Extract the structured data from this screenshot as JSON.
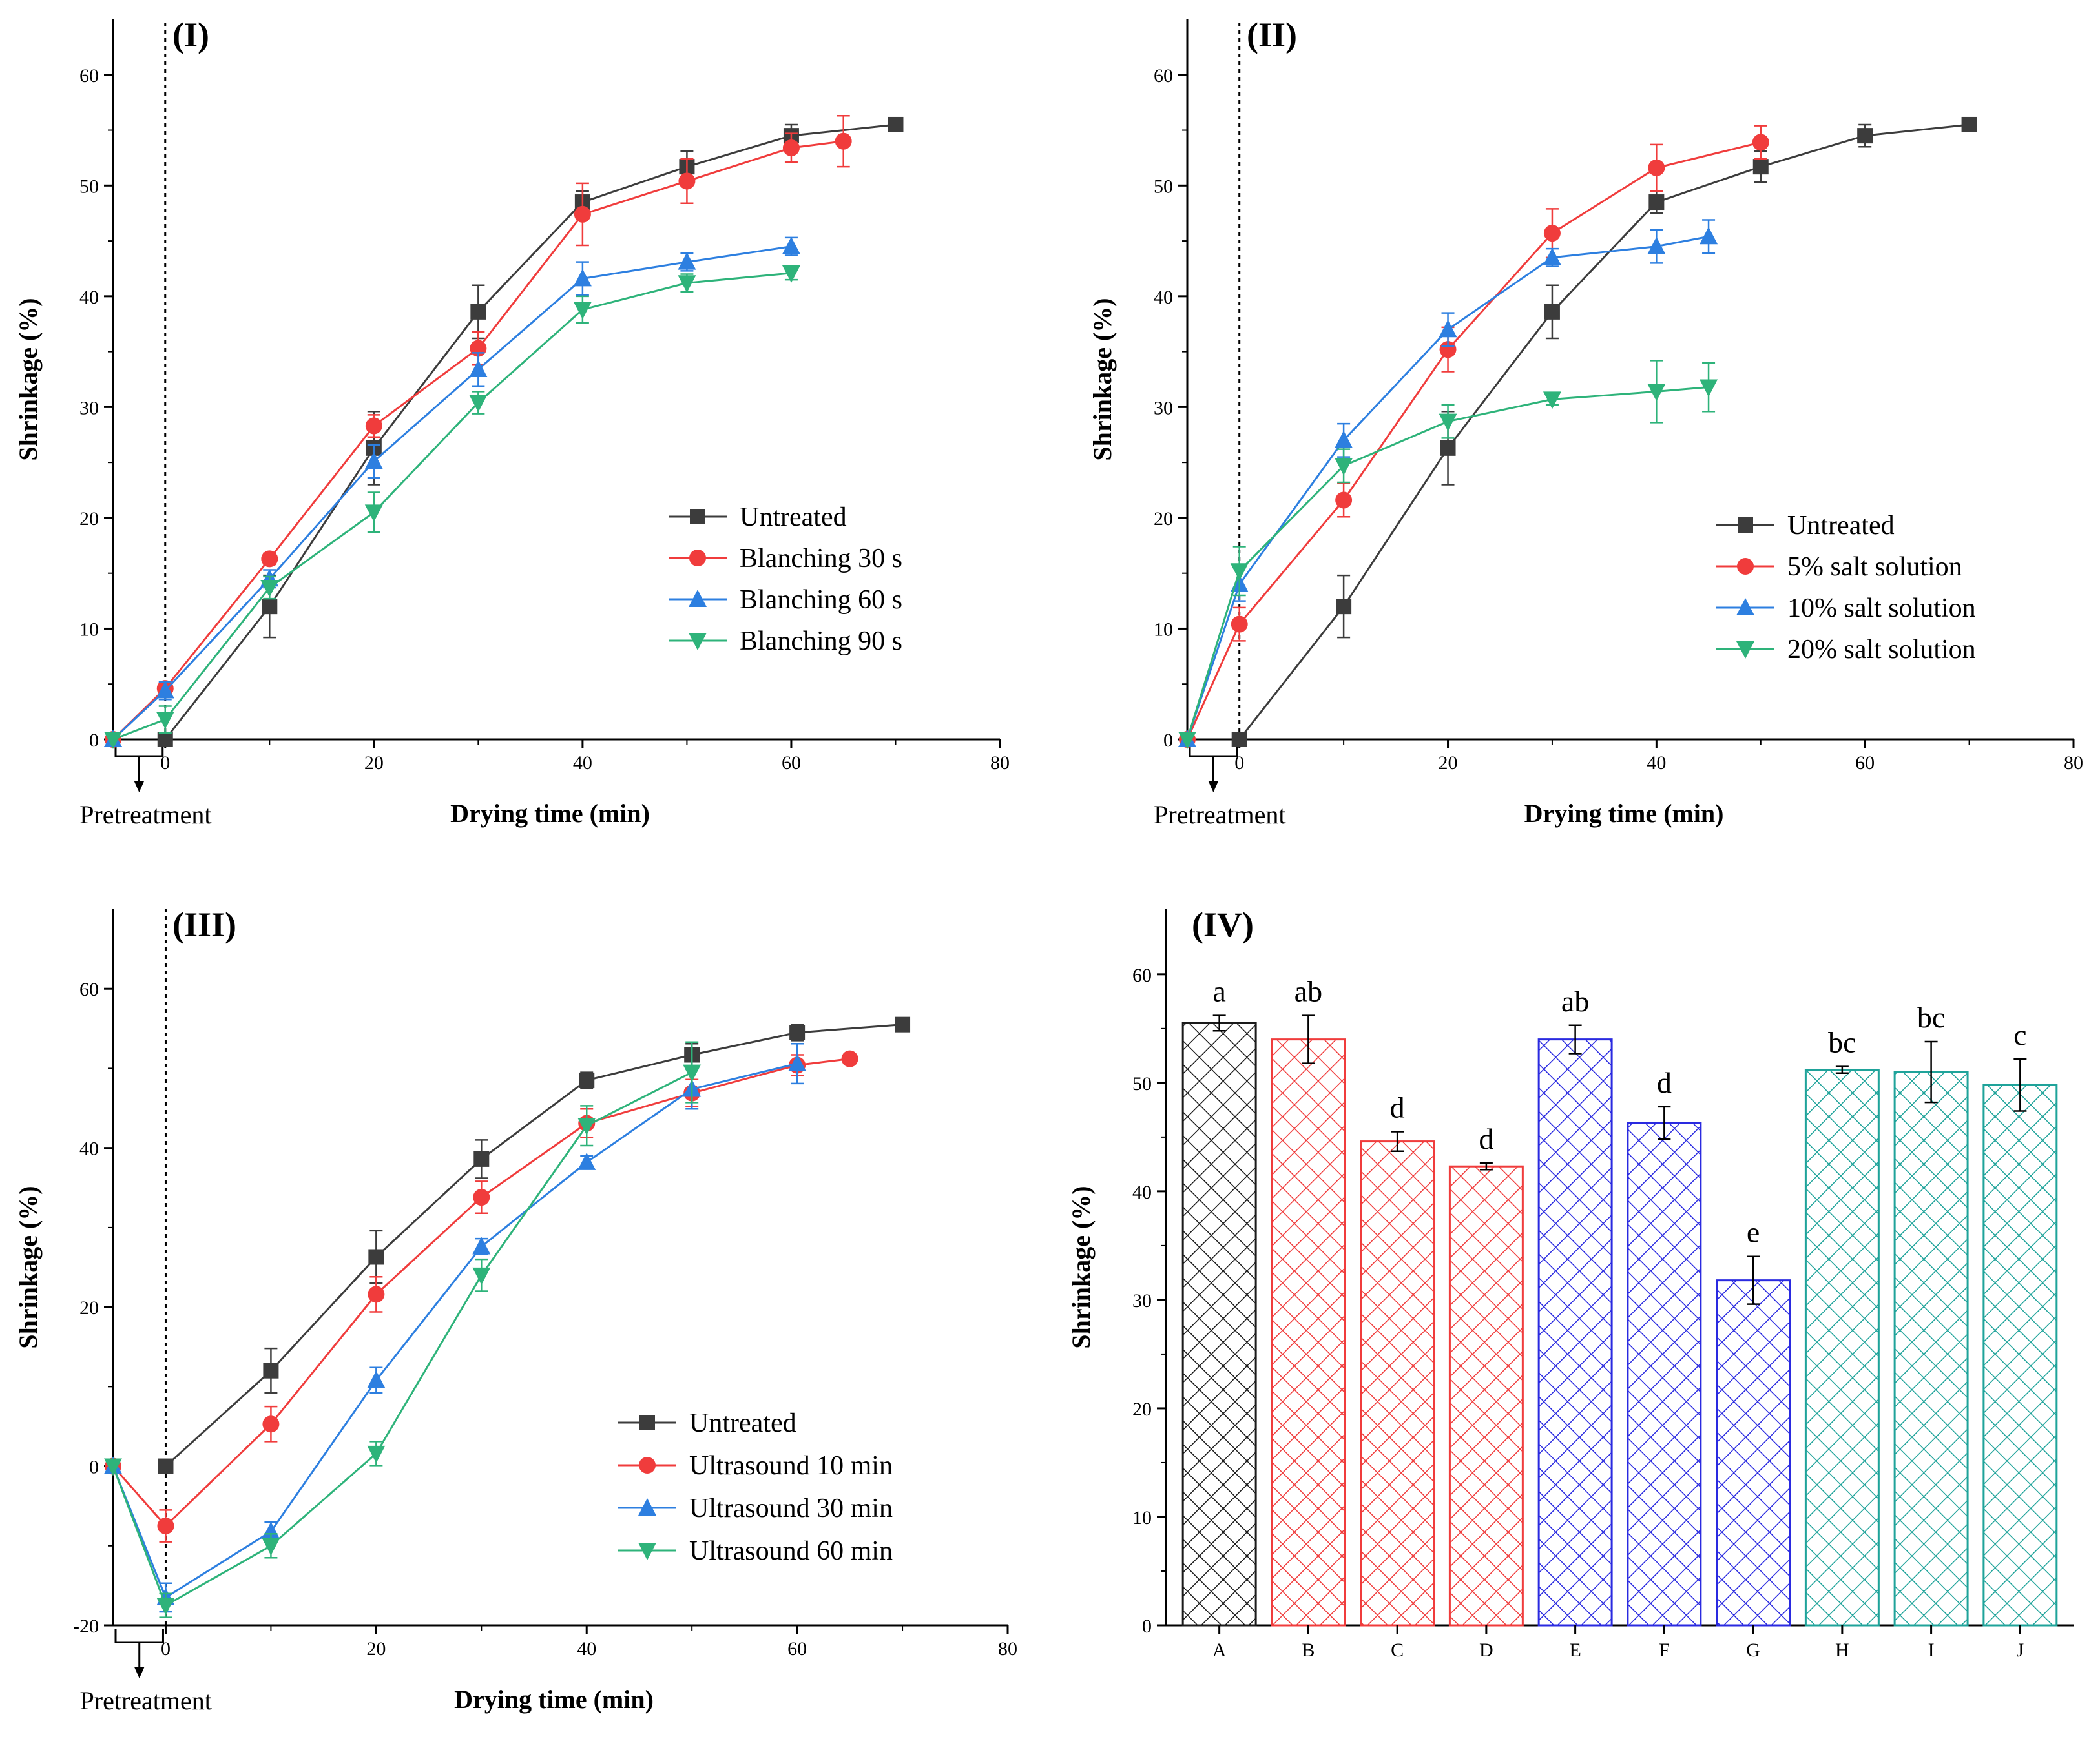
{
  "chart_data": [
    {
      "type": "line",
      "panel_label": "(I)",
      "xlabel": "Drying time (min)",
      "ylabel": "Shrinkage (%)",
      "xlim": [
        -5,
        80
      ],
      "ylim": [
        0,
        65
      ],
      "xticks": [
        0,
        20,
        40,
        60,
        80
      ],
      "yticks": [
        0,
        10,
        20,
        30,
        40,
        50,
        60
      ],
      "pretreatment_label": "Pretreatment",
      "legend_position": "center-right",
      "series": [
        {
          "name": "Untreated",
          "color": "#3c3c3c",
          "marker": "square",
          "x": [
            0,
            10,
            20,
            30,
            40,
            50,
            60,
            70
          ],
          "y": [
            0,
            12,
            26.3,
            38.6,
            48.5,
            51.7,
            54.5,
            55.5
          ],
          "err": [
            0,
            2.8,
            3.3,
            2.4,
            1.0,
            1.4,
            1.0,
            0.3
          ]
        },
        {
          "name": "Blanching 30 s",
          "color": "#f03c3c",
          "marker": "circle",
          "x": [
            -5,
            0,
            10,
            20,
            30,
            40,
            50,
            60,
            65
          ],
          "y": [
            0,
            4.6,
            16.3,
            28.3,
            35.3,
            47.4,
            50.4,
            53.4,
            54
          ],
          "err": [
            0,
            0.5,
            0.5,
            1.0,
            1.5,
            2.8,
            2.0,
            1.3,
            2.3
          ]
        },
        {
          "name": "Blanching 60 s",
          "color": "#2d7fe0",
          "marker": "triangle-up",
          "x": [
            -5,
            0,
            10,
            20,
            30,
            40,
            50,
            60
          ],
          "y": [
            0,
            4.4,
            14.5,
            25.1,
            33.4,
            41.6,
            43.1,
            44.5
          ],
          "err": [
            0,
            0.8,
            0.8,
            1.5,
            1.5,
            1.5,
            0.8,
            0.8
          ]
        },
        {
          "name": "Blanching 90 s",
          "color": "#2eb37a",
          "marker": "triangle-down",
          "x": [
            -5,
            0,
            10,
            20,
            30,
            40,
            50,
            60
          ],
          "y": [
            0,
            1.8,
            13.7,
            20.5,
            30.4,
            38.8,
            41.2,
            42.1
          ],
          "err": [
            0,
            1.2,
            1.0,
            1.8,
            1.0,
            1.2,
            0.8,
            0.6
          ]
        }
      ]
    },
    {
      "type": "line",
      "panel_label": "(II)",
      "xlabel": "Drying time (min)",
      "ylabel": "Shrinkage (%)",
      "xlim": [
        -5,
        80
      ],
      "ylim": [
        0,
        65
      ],
      "xticks": [
        0,
        20,
        40,
        60,
        80
      ],
      "yticks": [
        0,
        10,
        20,
        30,
        40,
        50,
        60
      ],
      "pretreatment_label": "Pretreatment",
      "legend_position": "bottom-right",
      "series": [
        {
          "name": "Untreated",
          "color": "#3c3c3c",
          "marker": "square",
          "x": [
            0,
            10,
            20,
            30,
            40,
            50,
            60,
            70
          ],
          "y": [
            0,
            12,
            26.3,
            38.6,
            48.5,
            51.7,
            54.5,
            55.5
          ],
          "err": [
            0,
            2.8,
            3.3,
            2.4,
            1.0,
            1.4,
            1.0,
            0.3
          ]
        },
        {
          "name": "5% salt solution",
          "color": "#f03c3c",
          "marker": "circle",
          "x": [
            -5,
            0,
            10,
            20,
            30,
            40,
            50
          ],
          "y": [
            0,
            10.4,
            21.6,
            35.2,
            45.7,
            51.6,
            53.9
          ],
          "err": [
            0,
            1.5,
            1.5,
            2.0,
            2.2,
            2.1,
            1.5
          ]
        },
        {
          "name": "10% salt solution",
          "color": "#2d7fe0",
          "marker": "triangle-up",
          "x": [
            -5,
            0,
            10,
            20,
            30,
            40,
            45
          ],
          "y": [
            0,
            14,
            27,
            37,
            43.5,
            44.5,
            45.4
          ],
          "err": [
            0,
            1.5,
            1.5,
            1.5,
            0.8,
            1.5,
            1.5
          ]
        },
        {
          "name": "20% salt solution",
          "color": "#2eb37a",
          "marker": "triangle-down",
          "x": [
            -5,
            0,
            10,
            20,
            30,
            40,
            45
          ],
          "y": [
            0,
            15.2,
            24.7,
            28.7,
            30.7,
            31.4,
            31.8
          ],
          "err": [
            0,
            2.2,
            1.5,
            1.5,
            0.5,
            2.8,
            2.2
          ]
        }
      ]
    },
    {
      "type": "line",
      "panel_label": "(III)",
      "xlabel": "Drying time (min)",
      "ylabel": "Shrinkage (%)",
      "xlim": [
        -5,
        80
      ],
      "ylim": [
        -20,
        70
      ],
      "xticks": [
        0,
        20,
        40,
        60,
        80
      ],
      "yticks": [
        -20,
        0,
        20,
        40,
        60
      ],
      "pretreatment_label": "Pretreatment",
      "legend_position": "bottom-right",
      "series": [
        {
          "name": "Untreated",
          "color": "#3c3c3c",
          "marker": "square",
          "x": [
            0,
            10,
            20,
            30,
            40,
            50,
            60,
            70
          ],
          "y": [
            0,
            12,
            26.3,
            38.6,
            48.5,
            51.7,
            54.5,
            55.5
          ],
          "err": [
            0,
            2.8,
            3.3,
            2.4,
            1.0,
            1.4,
            1.0,
            0.3
          ]
        },
        {
          "name": "Ultrasound 10 min",
          "color": "#f03c3c",
          "marker": "circle",
          "x": [
            -5,
            0,
            10,
            20,
            30,
            40,
            50,
            60,
            65
          ],
          "y": [
            0,
            -7.5,
            5.3,
            21.6,
            33.8,
            43.1,
            46.9,
            50.4,
            51.2
          ],
          "err": [
            0,
            2.0,
            2.2,
            2.2,
            2.0,
            1.8,
            1.7,
            1.3,
            0.6
          ]
        },
        {
          "name": "Ultrasound 30 min",
          "color": "#2d7fe0",
          "marker": "triangle-up",
          "x": [
            -5,
            0,
            10,
            20,
            30,
            40,
            50,
            60
          ],
          "y": [
            0,
            -16.5,
            -8.2,
            10.8,
            27.6,
            38.2,
            47.4,
            50.6
          ],
          "err": [
            0,
            1.8,
            1.2,
            1.6,
            1.0,
            0.8,
            2.5,
            2.5
          ]
        },
        {
          "name": "Ultrasound 60 min",
          "color": "#2eb37a",
          "marker": "triangle-down",
          "x": [
            -5,
            0,
            10,
            20,
            30,
            40,
            50
          ],
          "y": [
            0,
            -17.5,
            -10,
            1.6,
            24,
            42.8,
            49.5
          ],
          "err": [
            0,
            1.5,
            1.5,
            1.5,
            2.0,
            2.5,
            3.8
          ]
        }
      ]
    },
    {
      "type": "bar",
      "panel_label": "(IV)",
      "ylabel": "Shrinkage (%)",
      "ylim": [
        0,
        66
      ],
      "yticks": [
        0,
        10,
        20,
        30,
        40,
        50,
        60
      ],
      "categories": [
        "A",
        "B",
        "C",
        "D",
        "E",
        "F",
        "G",
        "H",
        "I",
        "J"
      ],
      "values": [
        55.5,
        54,
        44.6,
        42.3,
        54,
        46.3,
        31.8,
        51.2,
        51,
        49.8
      ],
      "errors": [
        0.7,
        2.2,
        0.9,
        0.3,
        1.3,
        1.5,
        2.2,
        0.3,
        2.8,
        2.4
      ],
      "letters": [
        "a",
        "ab",
        "d",
        "d",
        "ab",
        "d",
        "e",
        "bc",
        "bc",
        "c"
      ],
      "colors": [
        "#1a1a1a",
        "#f03c3c",
        "#f03c3c",
        "#f03c3c",
        "#2a2ae0",
        "#2a2ae0",
        "#2a2ae0",
        "#1fa39a",
        "#1fa39a",
        "#1fa39a"
      ]
    }
  ]
}
